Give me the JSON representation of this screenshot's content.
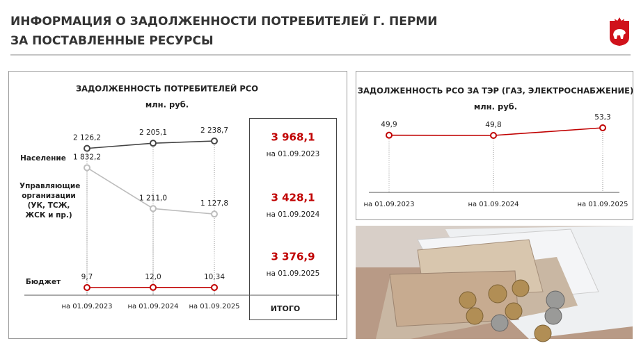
{
  "header": {
    "title_lines": [
      "ИНФОРМАЦИЯ О ЗАДОЛЖЕННОСТИ ПОТРЕБИТЕЛЕЙ Г. ПЕРМИ",
      "ЗА ПОСТАВЛЕННЫЕ РЕСУРСЫ"
    ]
  },
  "chart_data": [
    {
      "type": "line",
      "title": "ЗАДОЛЖЕННОСТЬ ПОТРЕБИТЕЛЕЙ РСО",
      "subtitle": "млн. руб.",
      "categories": [
        "на 01.09.2023",
        "на 01.09.2024",
        "на 01.09.2025"
      ],
      "series": [
        {
          "name": "Население",
          "color": "#444444",
          "values": [
            2126.2,
            2205.1,
            2238.7
          ],
          "value_labels": [
            "2 126,2",
            "2 205,1",
            "2 238,7"
          ]
        },
        {
          "name": "Управляющие организации (УК, ТСЖ, ЖСК и пр.)",
          "color": "#bdbdbd",
          "values": [
            1832.2,
            1211.0,
            1127.8
          ],
          "value_labels": [
            "1 832,2",
            "1 211,0",
            "1 127,8"
          ]
        },
        {
          "name": "Бюджет",
          "color": "#c00000",
          "values": [
            9.7,
            12.0,
            10.34
          ],
          "value_labels": [
            "9,7",
            "12,0",
            "10,34"
          ]
        }
      ]
    },
    {
      "type": "line",
      "title": "ЗАДОЛЖЕННОСТЬ РСО ЗА ТЭР (ГАЗ, ЭЛЕКТРОСНАБЖЕНИЕ)",
      "subtitle": "млн. руб.",
      "categories": [
        "на 01.09.2023",
        "на 01.09.2024",
        "на 01.09.2025"
      ],
      "series": [
        {
          "color": "#c00000",
          "values": [
            49.9,
            49.8,
            53.3
          ],
          "value_labels": [
            "49,9",
            "49,8",
            "53,3"
          ]
        }
      ]
    }
  ],
  "totals": {
    "items": [
      {
        "value": "3 968,1",
        "date": "на 01.09.2023"
      },
      {
        "value": "3 428,1",
        "date": "на 01.09.2024"
      },
      {
        "value": "3 376,9",
        "date": "на 01.09.2025"
      }
    ],
    "label": "ИТОГО"
  }
}
